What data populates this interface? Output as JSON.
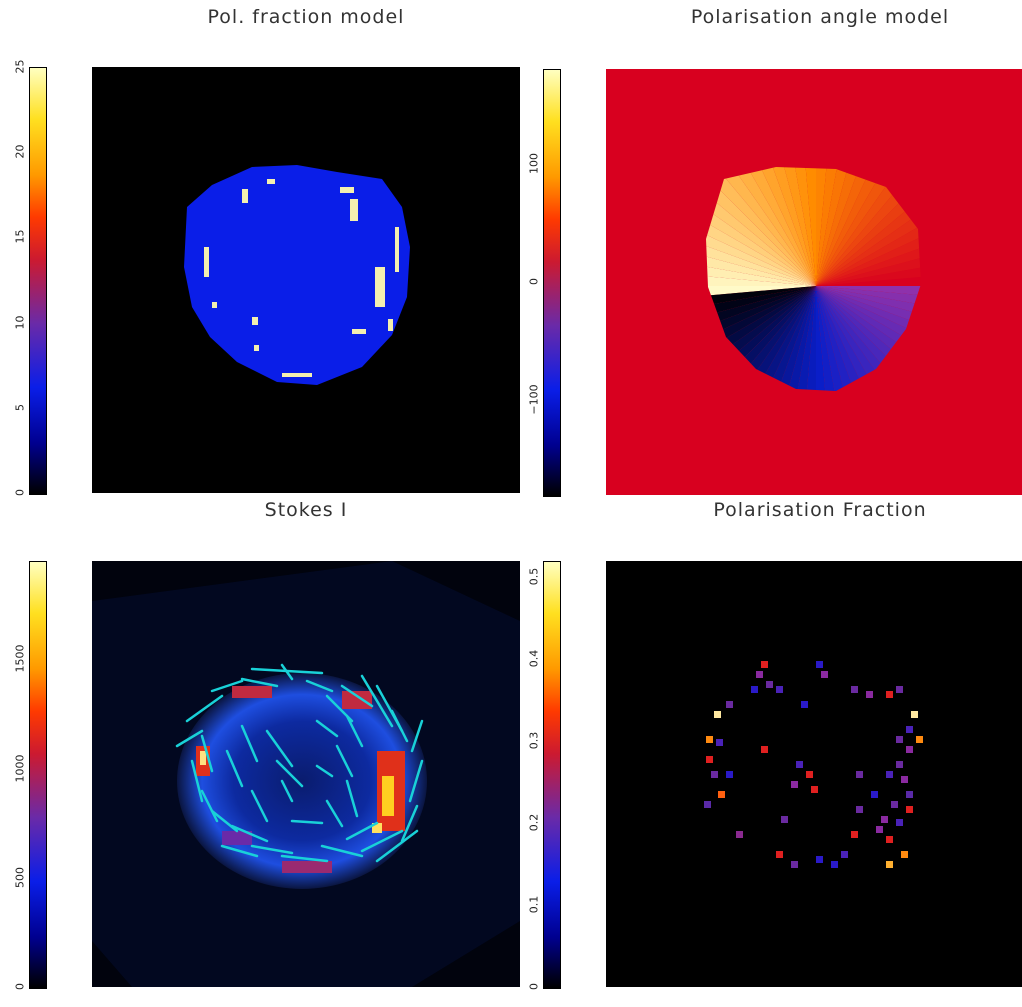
{
  "chart_data": [
    {
      "type": "heatmap",
      "title": "Pol. fraction model",
      "colorbar": {
        "ticks": [
          "0",
          "5",
          "10",
          "15",
          "20",
          "25"
        ],
        "range": [
          0,
          25
        ]
      }
    },
    {
      "type": "heatmap",
      "title": "Polarisation angle model",
      "colorbar": {
        "ticks": [
          "−100",
          "0",
          "100"
        ],
        "range": [
          -180,
          180
        ]
      }
    },
    {
      "type": "heatmap",
      "title": "Stokes I",
      "colorbar": {
        "ticks": [
          "0",
          "500",
          "1000",
          "1500"
        ],
        "range": [
          0,
          1950
        ]
      },
      "overlay": "polarisation vectors"
    },
    {
      "type": "heatmap",
      "title": "Polarisation Fraction",
      "colorbar": {
        "ticks": [
          "0",
          "0.1",
          "0.2",
          "0.3",
          "0.4",
          "0.5"
        ],
        "range": [
          0,
          0.52
        ]
      }
    }
  ],
  "colors": {
    "shell_blue": "#0a1ee8",
    "background": "#000000",
    "angle_bg": "#d8001f",
    "vector": "#19d1d8"
  }
}
